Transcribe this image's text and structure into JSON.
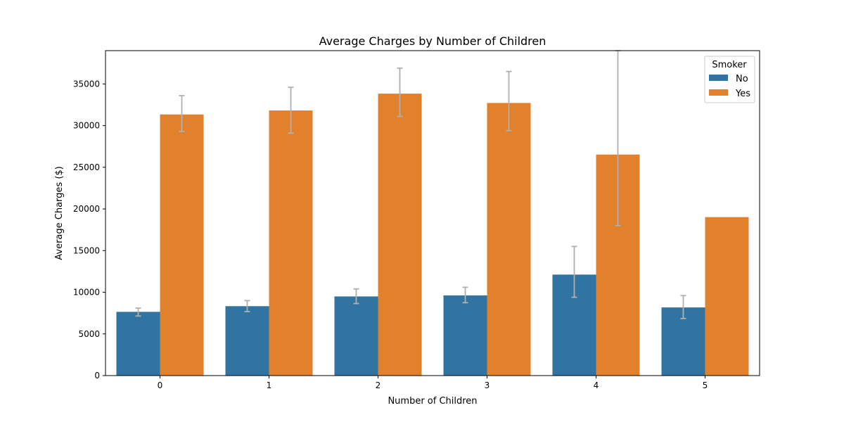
{
  "chart_data": {
    "type": "bar",
    "title": "Average Charges by Number of Children",
    "xlabel": "Number of Children",
    "ylabel": "Average Charges ($)",
    "categories": [
      "0",
      "1",
      "2",
      "3",
      "4",
      "5"
    ],
    "ylim": [
      0,
      39000
    ],
    "yticks": [
      0,
      5000,
      10000,
      15000,
      20000,
      25000,
      30000,
      35000
    ],
    "grid": false,
    "legend": {
      "title": "Smoker",
      "placement": "top-right"
    },
    "series": [
      {
        "name": "No",
        "color": "#3274a1",
        "values": [
          7650,
          8330,
          9500,
          9620,
          12120,
          8180
        ],
        "error_low": [
          7150,
          7680,
          8650,
          8750,
          9400,
          6850
        ],
        "error_high": [
          8100,
          9000,
          10400,
          10600,
          15500,
          9600
        ]
      },
      {
        "name": "Yes",
        "color": "#e1812c",
        "values": [
          31340,
          31820,
          33840,
          32720,
          26530,
          19020
        ],
        "error_low": [
          29300,
          29100,
          31100,
          29400,
          18000,
          null
        ],
        "error_high": [
          33600,
          34600,
          36900,
          36500,
          39000,
          null
        ]
      }
    ],
    "error_bar_color": "#b0b0b0"
  }
}
